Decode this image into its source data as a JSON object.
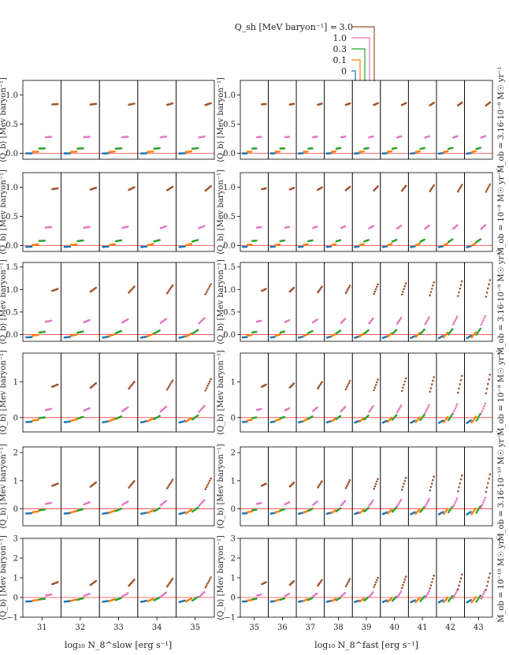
{
  "figure": {
    "legend_title": "Q_sh [MeV baryon⁻¹] =",
    "legend_entries": [
      {
        "label": "3.0",
        "color": "#a0522d"
      },
      {
        "label": "1.0",
        "color": "#e377c2"
      },
      {
        "label": "0.3",
        "color": "#2ca02c"
      },
      {
        "label": "0.1",
        "color": "#ff7f0e"
      },
      {
        "label": "0",
        "color": "#1f77b4"
      }
    ],
    "ylabel": "⟨Q_b⟩ [Mev baryon⁻¹]",
    "xlabel_left": "log₁₀ N_8^slow [erg s⁻¹]",
    "xlabel_right": "log₁₀ N_8^fast [erg s⁻¹]"
  },
  "chart_data": {
    "type": "scatter",
    "left_x_ticks": [
      "31",
      "32",
      "33",
      "34",
      "35"
    ],
    "right_x_ticks": [
      "35",
      "36",
      "37",
      "38",
      "39",
      "40",
      "41",
      "42",
      "43"
    ],
    "rows": [
      {
        "label": "Ṁ_ob = 3.16·10⁻⁸ M☉ yr⁻¹",
        "ylim": [
          -0.1,
          1.25
        ],
        "yticks": [
          0.0,
          0.5,
          1.0
        ],
        "ytick_labels": [
          "0.0",
          "0.5",
          "1.0"
        ],
        "hline": 0.0,
        "scale": 0.85,
        "spread": 0.05,
        "neg": 0.0
      },
      {
        "label": "Ṁ_ob = 10⁻⁸ M☉ yr⁻¹",
        "ylim": [
          -0.1,
          1.25
        ],
        "yticks": [
          0.0,
          0.5,
          1.0
        ],
        "ytick_labels": [
          "0.0",
          "0.5",
          "1.0"
        ],
        "hline": 0.0,
        "scale": 1.0,
        "spread": 0.12,
        "neg": 0.05
      },
      {
        "label": "Ṁ_ob = 3.16·10⁻⁹ M☉ yr⁻¹",
        "ylim": [
          -0.15,
          1.6
        ],
        "yticks": [
          0.0,
          0.5,
          1.0,
          1.5
        ],
        "ytick_labels": [
          "0.0",
          "0.5",
          "1.0",
          "1.5"
        ],
        "hline": 0.0,
        "scale": 1.05,
        "spread": 0.35,
        "neg": 0.15
      },
      {
        "label": "Ṁ_ob = 10⁻⁹ M☉ yr⁻¹",
        "ylim": [
          -0.4,
          1.8
        ],
        "yticks": [
          0,
          1
        ],
        "ytick_labels": [
          "0",
          "1"
        ],
        "hline": 0.0,
        "scale": 1.0,
        "spread": 0.5,
        "neg": 0.3
      },
      {
        "label": "Ṁ_ob = 3.16·10⁻¹⁰ M☉ yr⁻¹",
        "ylim": [
          -0.6,
          2.2
        ],
        "yticks": [
          0,
          1,
          2
        ],
        "ytick_labels": [
          "0",
          "1",
          "2"
        ],
        "hline": 0.0,
        "scale": 1.0,
        "spread": 0.6,
        "neg": 0.4
      },
      {
        "label": "Ṁ_ob = 10⁻¹⁰ M☉ yr⁻¹",
        "ylim": [
          -1.0,
          3.0
        ],
        "yticks": [
          -1,
          0,
          1,
          2,
          3
        ],
        "ytick_labels": [
          "−1",
          "0",
          "1",
          "2",
          "3"
        ],
        "hline": 0.0,
        "scale": 0.9,
        "spread": 0.8,
        "neg": 0.5
      }
    ],
    "series": [
      {
        "name": "0",
        "q": 0.0
      },
      {
        "name": "0.1",
        "q": 0.1
      },
      {
        "name": "0.3",
        "q": 0.3
      },
      {
        "name": "1.0",
        "q": 1.0
      },
      {
        "name": "3.0",
        "q": 3.0
      }
    ]
  }
}
